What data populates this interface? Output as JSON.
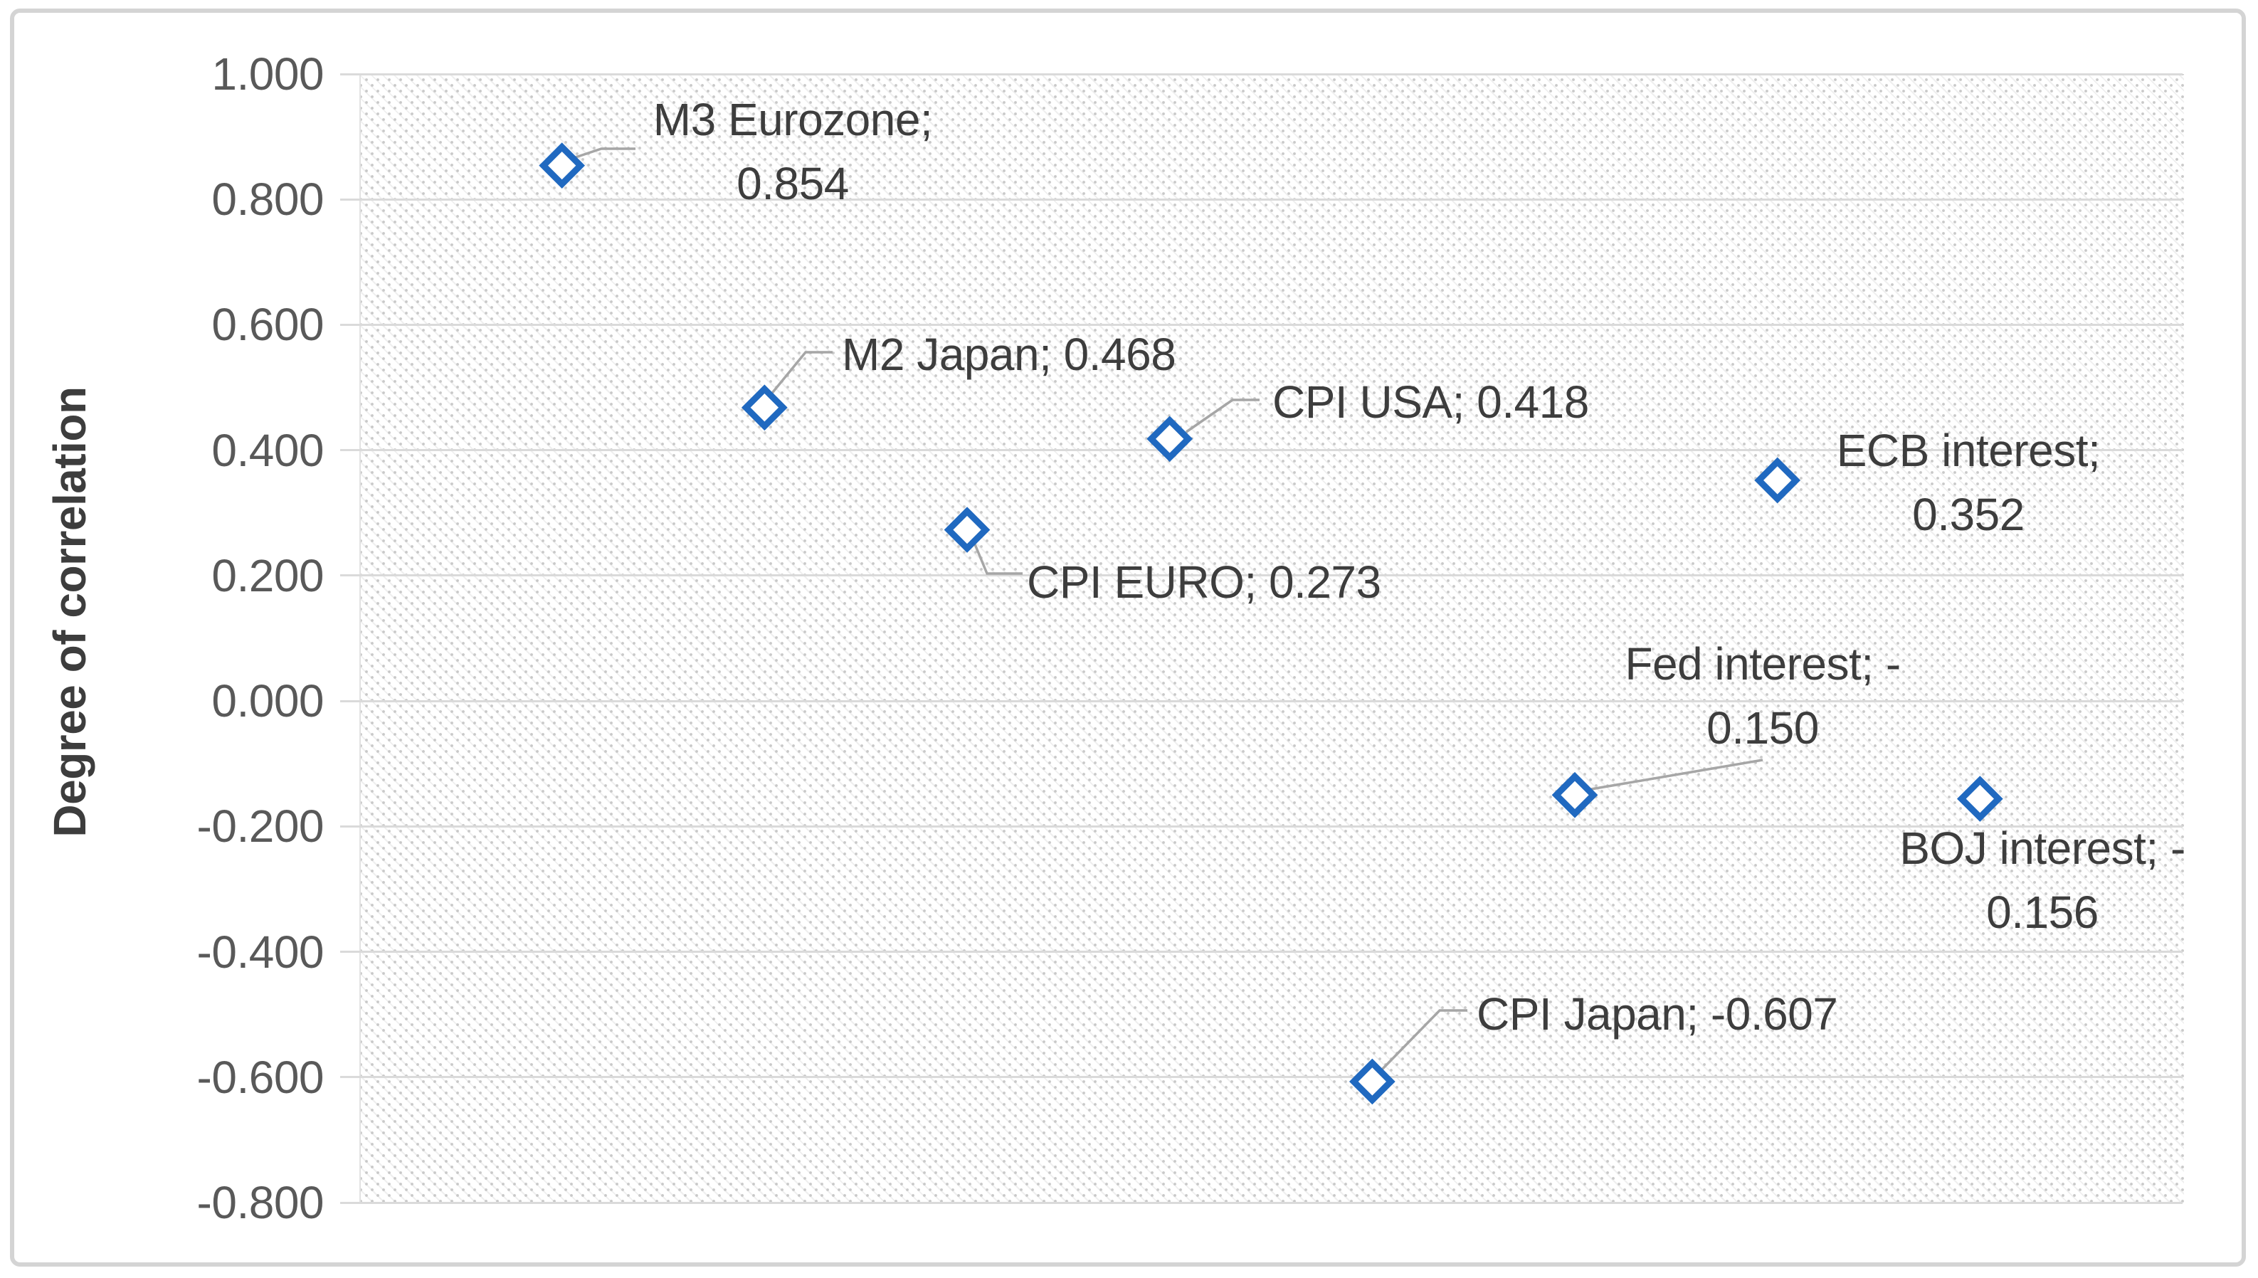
{
  "chart_data": {
    "type": "scatter",
    "title": "",
    "xlabel": "",
    "ylabel": "Degree of correlation",
    "ylim": [
      -0.8,
      1.0
    ],
    "xlim": [
      0,
      9
    ],
    "grid": "horizontal-only",
    "legend": "none",
    "marker_shape": "hollow-diamond",
    "yticks": [
      {
        "value": 1.0,
        "label": "1.000"
      },
      {
        "value": 0.8,
        "label": "0.800"
      },
      {
        "value": 0.6,
        "label": "0.600"
      },
      {
        "value": 0.4,
        "label": "0.400"
      },
      {
        "value": 0.2,
        "label": "0.200"
      },
      {
        "value": 0.0,
        "label": "0.000"
      },
      {
        "value": -0.2,
        "label": "-0.200"
      },
      {
        "value": -0.4,
        "label": "-0.400"
      },
      {
        "value": -0.6,
        "label": "-0.600"
      },
      {
        "value": -0.8,
        "label": "-0.800"
      }
    ],
    "points": [
      {
        "name": "M3 Eurozone",
        "x": 1,
        "y": 0.854,
        "label_lines": [
          "M3 Eurozone;",
          "0.854"
        ]
      },
      {
        "name": "M2 Japan",
        "x": 2,
        "y": 0.468,
        "label_lines": [
          "M2 Japan; 0.468"
        ]
      },
      {
        "name": "CPI EURO",
        "x": 3,
        "y": 0.273,
        "label_lines": [
          "CPI EURO; 0.273"
        ]
      },
      {
        "name": "CPI USA",
        "x": 4,
        "y": 0.418,
        "label_lines": [
          "CPI USA; 0.418"
        ]
      },
      {
        "name": "CPI Japan",
        "x": 5,
        "y": -0.607,
        "label_lines": [
          "CPI Japan; -0.607"
        ]
      },
      {
        "name": "Fed interest",
        "x": 6,
        "y": -0.15,
        "label_lines": [
          "Fed interest; -",
          "0.150"
        ]
      },
      {
        "name": "ECB interest",
        "x": 7,
        "y": 0.352,
        "label_lines": [
          "ECB interest;",
          "0.352"
        ]
      },
      {
        "name": "BOJ interest",
        "x": 8,
        "y": -0.156,
        "label_lines": [
          "BOJ interest; -",
          "0.156"
        ]
      }
    ],
    "colors": {
      "marker": "#2069c0",
      "gridline": "#dadada",
      "tick_label": "#595959",
      "data_label": "#3d3d3d",
      "axis_title": "#3d3d3d",
      "leader_line": "#a6a6a6",
      "frame_border": "#d4d4d4"
    }
  }
}
